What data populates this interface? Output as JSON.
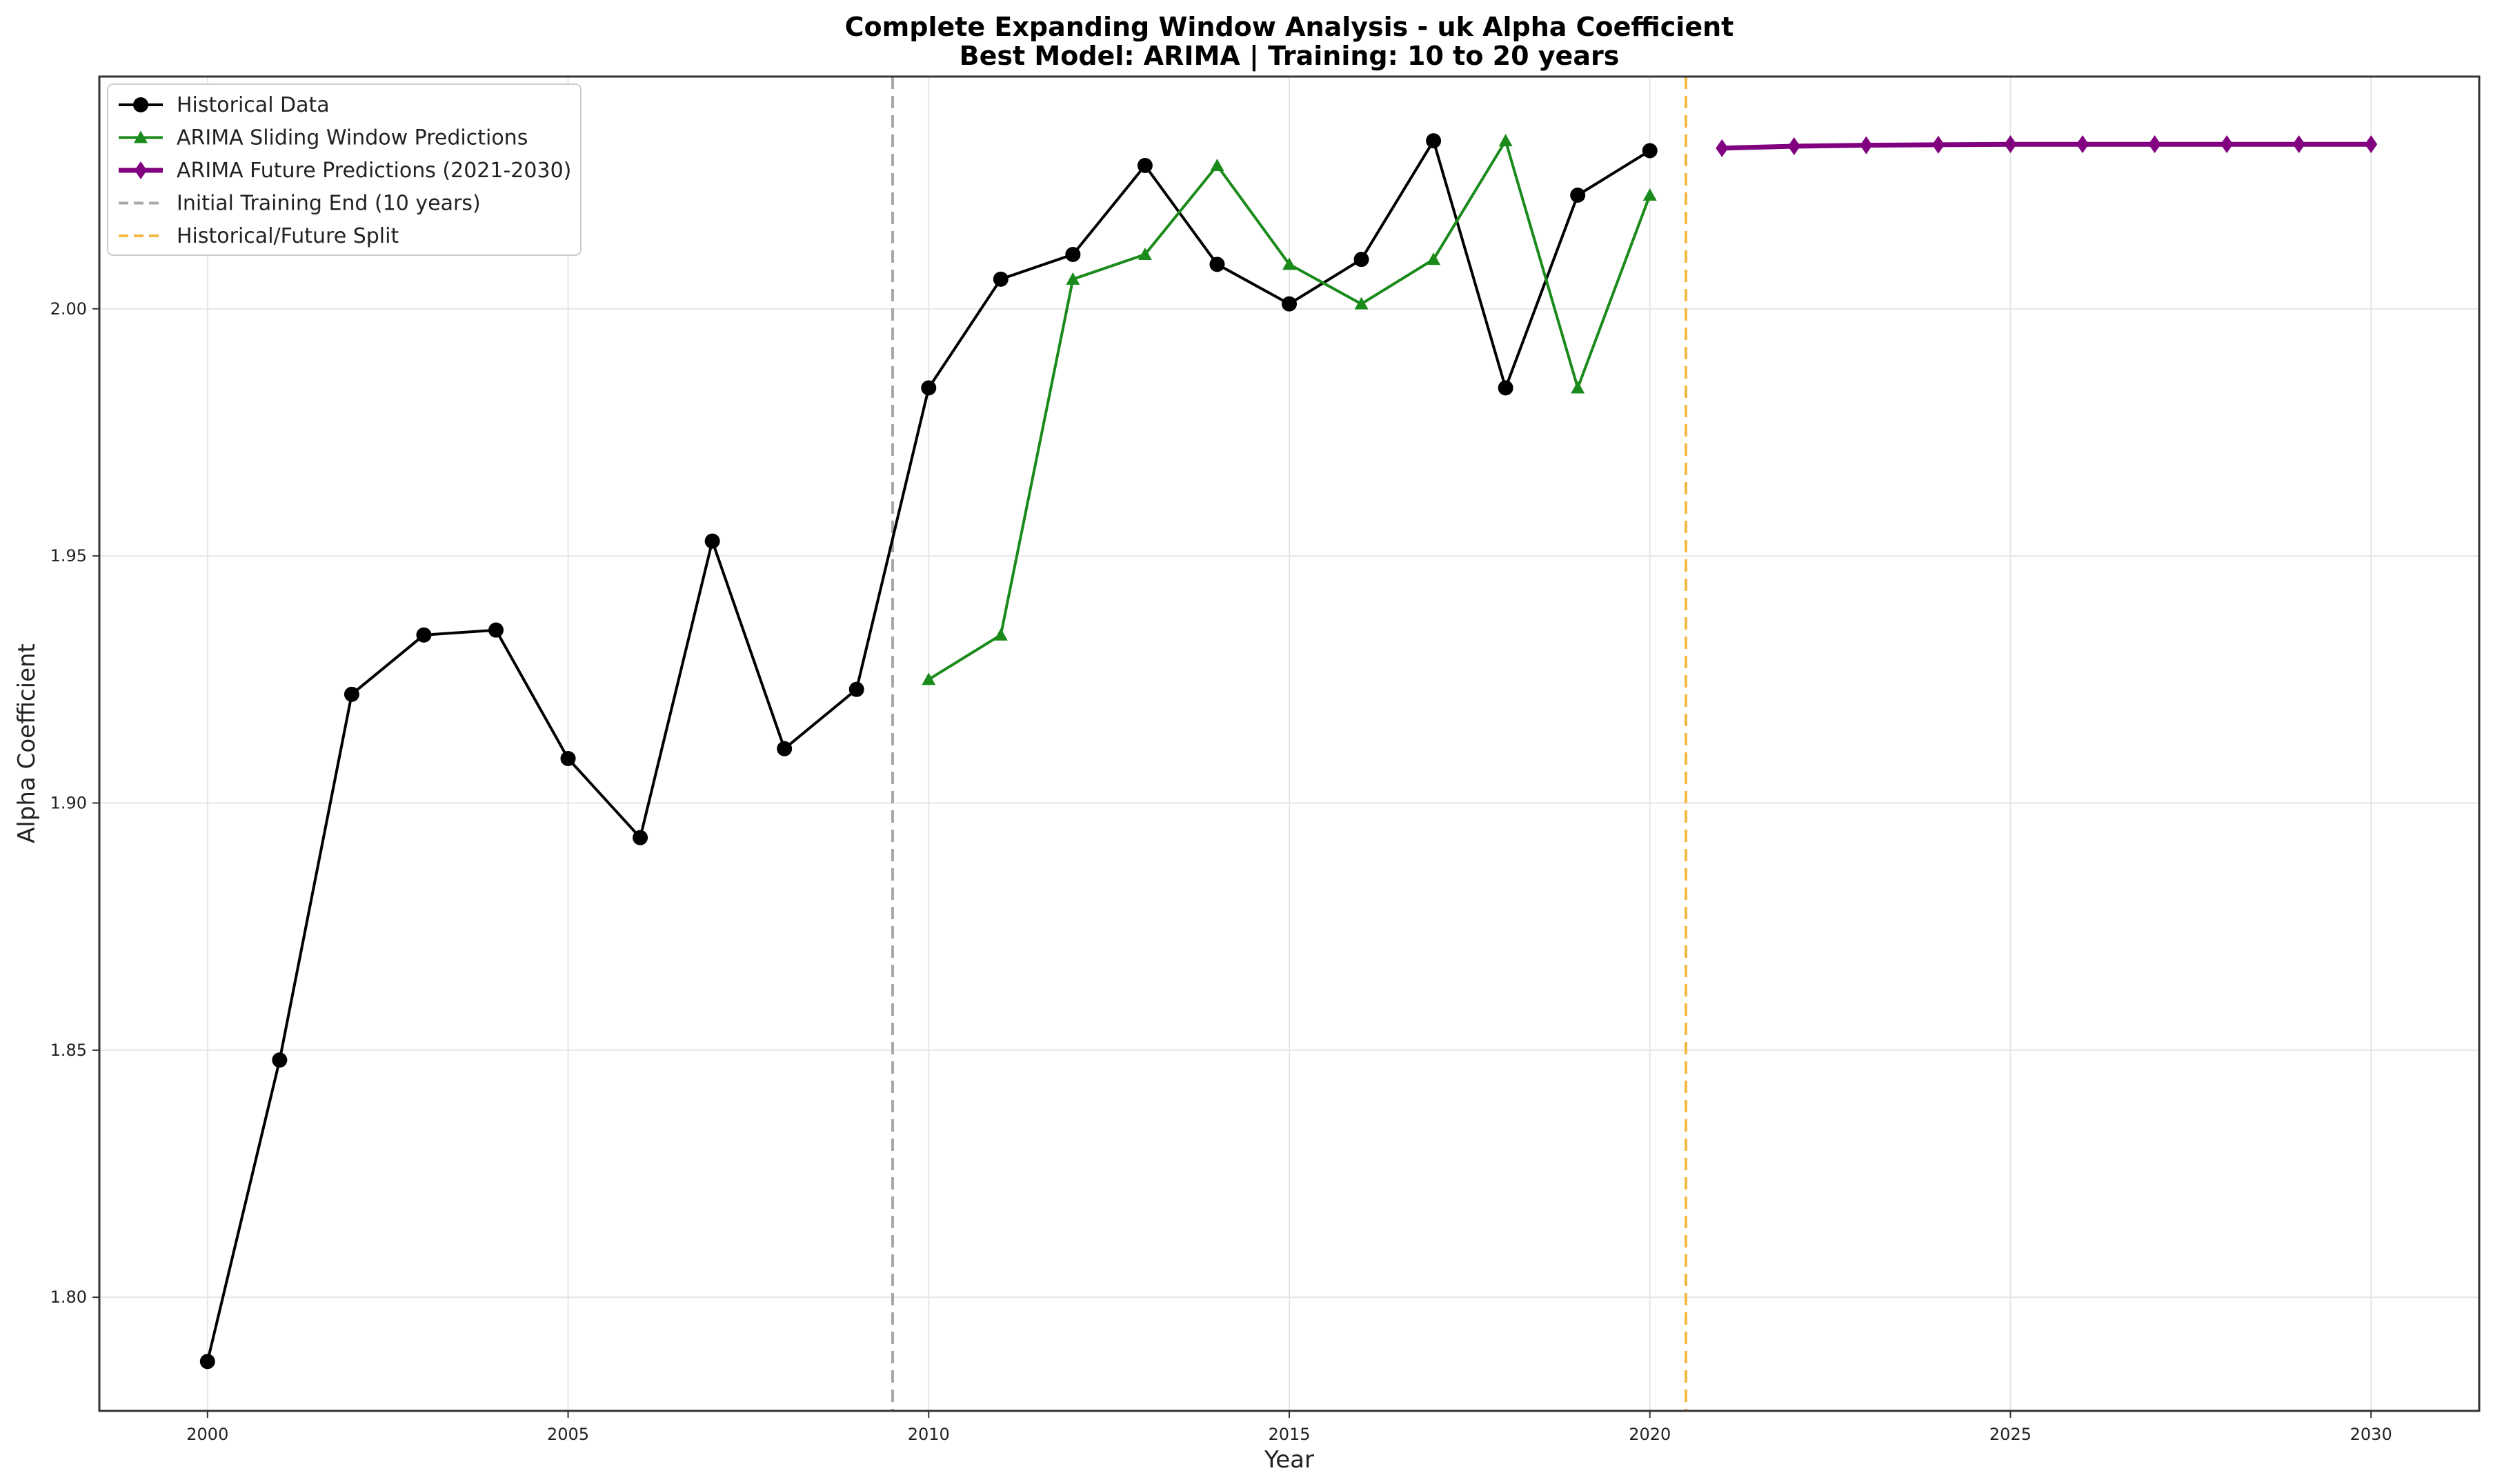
{
  "chart_data": {
    "type": "line",
    "title_lines": [
      "Complete Expanding Window Analysis - uk Alpha Coefficient",
      "Best Model: ARIMA | Training: 10 to 20 years"
    ],
    "xlabel": "Year",
    "ylabel": "Alpha Coefficient",
    "xlim": [
      1998.5,
      2031.5
    ],
    "ylim": [
      1.777,
      2.047
    ],
    "xticks": [
      2000,
      2005,
      2010,
      2015,
      2020,
      2025,
      2030
    ],
    "yticks": [
      1.8,
      1.85,
      1.9,
      1.95,
      2.0
    ],
    "ytick_labels": [
      "1.80",
      "1.85",
      "1.90",
      "1.95",
      "2.00"
    ],
    "grid": true,
    "legend_position": "top-left",
    "series": [
      {
        "name": "Historical Data",
        "color": "#000000",
        "marker": "circle",
        "x": [
          2000,
          2001,
          2002,
          2003,
          2004,
          2005,
          2006,
          2007,
          2008,
          2009,
          2010,
          2011,
          2012,
          2013,
          2014,
          2015,
          2016,
          2017,
          2018,
          2019,
          2020
        ],
        "values": [
          1.787,
          1.848,
          1.922,
          1.934,
          1.935,
          1.909,
          1.893,
          1.953,
          1.911,
          1.923,
          1.984,
          2.006,
          2.011,
          2.029,
          2.009,
          2.001,
          2.01,
          2.034,
          1.984,
          2.023,
          2.032
        ]
      },
      {
        "name": "ARIMA Sliding Window Predictions",
        "color": "#1a8a1a",
        "marker": "triangle",
        "x": [
          2010,
          2011,
          2012,
          2013,
          2014,
          2015,
          2016,
          2017,
          2018,
          2019,
          2020
        ],
        "values": [
          1.925,
          1.934,
          2.006,
          2.011,
          2.029,
          2.009,
          2.001,
          2.01,
          2.034,
          1.984,
          2.023
        ]
      },
      {
        "name": "ARIMA Future Predictions (2021-2030)",
        "color": "#800080",
        "marker": "diamond",
        "x": [
          2021,
          2022,
          2023,
          2024,
          2025,
          2026,
          2027,
          2028,
          2029,
          2030
        ],
        "values": [
          2.0325,
          2.0329,
          2.0331,
          2.0332,
          2.0333,
          2.0333,
          2.0333,
          2.0333,
          2.0333,
          2.0333
        ]
      }
    ],
    "vlines": [
      {
        "name": "Initial Training End (10 years)",
        "x": 2009.5,
        "color": "#a8a8a8"
      },
      {
        "name": "Historical/Future Split",
        "x": 2020.5,
        "color": "#f5b942"
      }
    ]
  }
}
